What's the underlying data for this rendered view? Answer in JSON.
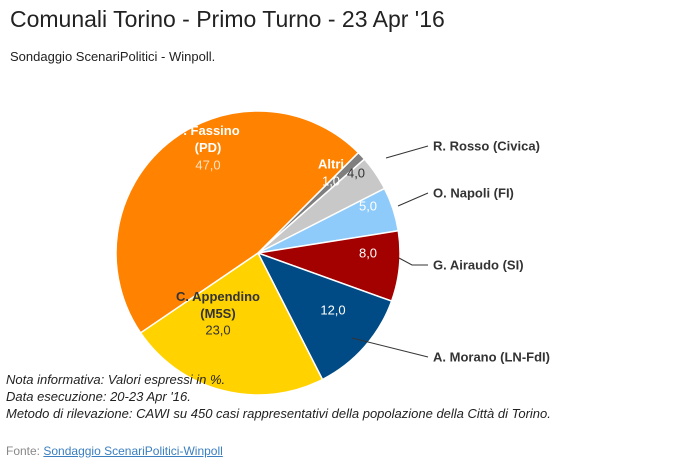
{
  "chart_data": {
    "type": "pie",
    "title": "Comunali Torino - Primo Turno - 23 Apr '16",
    "subtitle": "Sondaggio ScenariPolitici - Winpoll.",
    "categories": [
      "Altri",
      "R. Rosso (Civica)",
      "O. Napoli (FI)",
      "G. Airaudo (SI)",
      "A. Morano (LN-FdI)",
      "C. Appendino (M5S)",
      "P. Fassino (PD)"
    ],
    "values": [
      1,
      4,
      5,
      8,
      12,
      23,
      47
    ],
    "value_labels": [
      "1,0",
      "4,0",
      "5,0",
      "8,0",
      "12,0",
      "23,0",
      "47,0"
    ],
    "colors": [
      "#7f7f7f",
      "#c8c8c8",
      "#8fcbfa",
      "#a30000",
      "#004b85",
      "#ffd200",
      "#ff8200"
    ],
    "notes": [
      "Nota informativa: Valori espressi in %.",
      "Data esecuzione: 20-23 Apr '16.",
      "Metodo di rilevazione: CAWI su 450 casi rappresentativi della popolazione della Città di Torino."
    ],
    "source_prefix": "Fonte:",
    "source_link": "Sondaggio ScenariPolitici-Winpoll"
  }
}
